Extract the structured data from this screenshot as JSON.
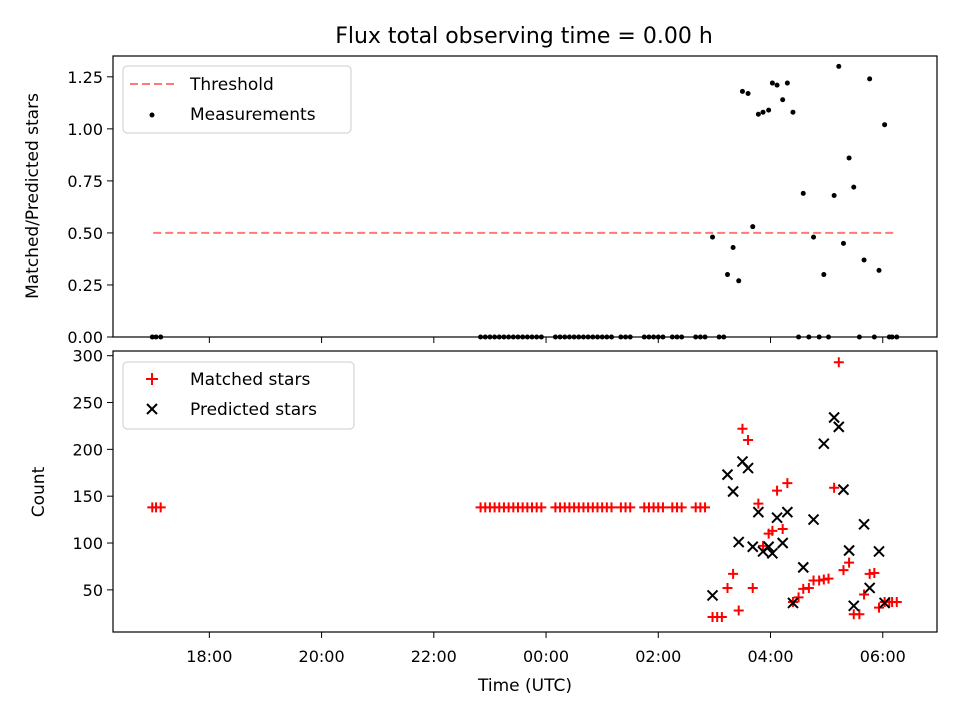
{
  "title": "Flux total observing time = 0.00 h",
  "colors": {
    "threshold": "#ff7777",
    "measurements": "#000000",
    "matched": "#ff0000",
    "predicted": "#000000"
  },
  "chart_data": [
    {
      "type": "scatter",
      "panel": "top",
      "title": "Flux total observing time = 0.00 h",
      "ylabel": "Matched/Predicted stars",
      "xlabel": "",
      "xlim": [
        "16:17",
        "06:58"
      ],
      "ylim": [
        0,
        1.35
      ],
      "x_ticks": [
        "18:00",
        "20:00",
        "22:00",
        "00:00",
        "02:00",
        "04:00",
        "06:00"
      ],
      "y_ticks": [
        "0.00",
        "0.25",
        "0.50",
        "0.75",
        "1.00",
        "1.25"
      ],
      "legend": {
        "placement": "upper left",
        "entries": [
          "Threshold",
          "Measurements"
        ]
      },
      "threshold": {
        "name": "Threshold",
        "value": 0.5,
        "x": [
          "17:00",
          "06:15"
        ]
      },
      "series": [
        {
          "name": "Measurements",
          "points": [
            [
              "16:59",
              0
            ],
            [
              "17:03",
              0
            ],
            [
              "17:08",
              0
            ],
            [
              "22:50",
              0
            ],
            [
              "22:55",
              0
            ],
            [
              "23:00",
              0
            ],
            [
              "23:05",
              0
            ],
            [
              "23:10",
              0
            ],
            [
              "23:15",
              0
            ],
            [
              "23:20",
              0
            ],
            [
              "23:25",
              0
            ],
            [
              "23:30",
              0
            ],
            [
              "23:35",
              0
            ],
            [
              "23:40",
              0
            ],
            [
              "23:45",
              0
            ],
            [
              "23:50",
              0
            ],
            [
              "23:55",
              0
            ],
            [
              "00:10",
              0
            ],
            [
              "00:15",
              0
            ],
            [
              "00:20",
              0
            ],
            [
              "00:25",
              0
            ],
            [
              "00:30",
              0
            ],
            [
              "00:35",
              0
            ],
            [
              "00:40",
              0
            ],
            [
              "00:45",
              0
            ],
            [
              "00:50",
              0
            ],
            [
              "00:55",
              0
            ],
            [
              "01:00",
              0
            ],
            [
              "01:05",
              0
            ],
            [
              "01:10",
              0
            ],
            [
              "01:20",
              0
            ],
            [
              "01:25",
              0
            ],
            [
              "01:30",
              0
            ],
            [
              "01:45",
              0
            ],
            [
              "01:50",
              0
            ],
            [
              "01:55",
              0
            ],
            [
              "02:00",
              0
            ],
            [
              "02:05",
              0
            ],
            [
              "02:15",
              0
            ],
            [
              "02:20",
              0
            ],
            [
              "02:25",
              0
            ],
            [
              "02:40",
              0
            ],
            [
              "02:45",
              0
            ],
            [
              "02:50",
              0
            ],
            [
              "03:05",
              0
            ],
            [
              "03:10",
              0
            ],
            [
              "02:58",
              0.48
            ],
            [
              "03:14",
              0.3
            ],
            [
              "03:20",
              0.43
            ],
            [
              "03:26",
              0.27
            ],
            [
              "03:30",
              1.18
            ],
            [
              "03:36",
              1.17
            ],
            [
              "03:41",
              0.53
            ],
            [
              "03:47",
              1.07
            ],
            [
              "03:52",
              1.08
            ],
            [
              "03:58",
              1.09
            ],
            [
              "04:02",
              1.22
            ],
            [
              "04:07",
              1.21
            ],
            [
              "04:13",
              1.14
            ],
            [
              "04:18",
              1.22
            ],
            [
              "04:24",
              1.08
            ],
            [
              "04:30",
              0
            ],
            [
              "04:35",
              0.69
            ],
            [
              "04:41",
              0
            ],
            [
              "04:46",
              0.48
            ],
            [
              "04:52",
              0
            ],
            [
              "04:57",
              0.3
            ],
            [
              "05:02",
              0
            ],
            [
              "05:08",
              0.68
            ],
            [
              "05:13",
              1.3
            ],
            [
              "05:18",
              0.45
            ],
            [
              "05:24",
              0.86
            ],
            [
              "05:29",
              0.72
            ],
            [
              "05:35",
              0
            ],
            [
              "05:40",
              0.37
            ],
            [
              "05:46",
              1.24
            ],
            [
              "05:51",
              0
            ],
            [
              "05:56",
              0.32
            ],
            [
              "06:02",
              1.02
            ],
            [
              "06:07",
              0
            ],
            [
              "06:10",
              0
            ],
            [
              "06:15",
              0
            ]
          ]
        }
      ]
    },
    {
      "type": "scatter",
      "panel": "bottom",
      "title": "",
      "xlabel": "Time (UTC)",
      "ylabel": "Count",
      "xlim": [
        "16:17",
        "06:58"
      ],
      "ylim": [
        5,
        305
      ],
      "x_ticks": [
        "18:00",
        "20:00",
        "22:00",
        "00:00",
        "02:00",
        "04:00",
        "06:00"
      ],
      "y_ticks": [
        "50",
        "100",
        "150",
        "200",
        "250",
        "300"
      ],
      "legend": {
        "placement": "upper left",
        "entries": [
          "Matched stars",
          "Predicted stars"
        ]
      },
      "series": [
        {
          "name": "Matched stars",
          "marker": "plus",
          "points": [
            [
              "16:59",
              138
            ],
            [
              "17:03",
              138
            ],
            [
              "17:08",
              138
            ],
            [
              "22:50",
              138
            ],
            [
              "22:55",
              138
            ],
            [
              "23:00",
              138
            ],
            [
              "23:05",
              138
            ],
            [
              "23:10",
              138
            ],
            [
              "23:15",
              138
            ],
            [
              "23:20",
              138
            ],
            [
              "23:25",
              138
            ],
            [
              "23:30",
              138
            ],
            [
              "23:35",
              138
            ],
            [
              "23:40",
              138
            ],
            [
              "23:45",
              138
            ],
            [
              "23:50",
              138
            ],
            [
              "23:55",
              138
            ],
            [
              "00:10",
              138
            ],
            [
              "00:15",
              138
            ],
            [
              "00:20",
              138
            ],
            [
              "00:25",
              138
            ],
            [
              "00:30",
              138
            ],
            [
              "00:35",
              138
            ],
            [
              "00:40",
              138
            ],
            [
              "00:45",
              138
            ],
            [
              "00:50",
              138
            ],
            [
              "00:55",
              138
            ],
            [
              "01:00",
              138
            ],
            [
              "01:05",
              138
            ],
            [
              "01:10",
              138
            ],
            [
              "01:20",
              138
            ],
            [
              "01:25",
              138
            ],
            [
              "01:30",
              138
            ],
            [
              "01:45",
              138
            ],
            [
              "01:50",
              138
            ],
            [
              "01:55",
              138
            ],
            [
              "02:00",
              138
            ],
            [
              "02:05",
              138
            ],
            [
              "02:15",
              138
            ],
            [
              "02:20",
              138
            ],
            [
              "02:25",
              138
            ],
            [
              "02:40",
              138
            ],
            [
              "02:45",
              138
            ],
            [
              "02:50",
              138
            ],
            [
              "02:58",
              21
            ],
            [
              "03:03",
              21
            ],
            [
              "03:08",
              21
            ],
            [
              "03:14",
              52
            ],
            [
              "03:20",
              67
            ],
            [
              "03:26",
              28
            ],
            [
              "03:30",
              222
            ],
            [
              "03:36",
              210
            ],
            [
              "03:41",
              52
            ],
            [
              "03:47",
              142
            ],
            [
              "03:52",
              97
            ],
            [
              "03:58",
              110
            ],
            [
              "04:02",
              113
            ],
            [
              "04:07",
              156
            ],
            [
              "04:13",
              115
            ],
            [
              "04:18",
              164
            ],
            [
              "04:24",
              37
            ],
            [
              "04:30",
              42
            ],
            [
              "04:35",
              51
            ],
            [
              "04:41",
              52
            ],
            [
              "04:46",
              60
            ],
            [
              "04:52",
              60
            ],
            [
              "04:57",
              61
            ],
            [
              "05:02",
              62
            ],
            [
              "05:08",
              159
            ],
            [
              "05:13",
              293
            ],
            [
              "05:18",
              71
            ],
            [
              "05:24",
              79
            ],
            [
              "05:29",
              24
            ],
            [
              "05:35",
              24
            ],
            [
              "05:40",
              45
            ],
            [
              "05:46",
              67
            ],
            [
              "05:51",
              68
            ],
            [
              "05:56",
              31
            ],
            [
              "06:02",
              37
            ],
            [
              "06:07",
              37
            ],
            [
              "06:10",
              37
            ],
            [
              "06:15",
              37
            ]
          ]
        },
        {
          "name": "Predicted stars",
          "marker": "x",
          "points": [
            [
              "02:58",
              44
            ],
            [
              "03:14",
              173
            ],
            [
              "03:20",
              155
            ],
            [
              "03:26",
              101
            ],
            [
              "03:30",
              187
            ],
            [
              "03:36",
              180
            ],
            [
              "03:41",
              96
            ],
            [
              "03:47",
              133
            ],
            [
              "03:52",
              91
            ],
            [
              "03:58",
              96
            ],
            [
              "04:02",
              89
            ],
            [
              "04:07",
              127
            ],
            [
              "04:13",
              100
            ],
            [
              "04:18",
              133
            ],
            [
              "04:24",
              36
            ],
            [
              "04:35",
              74
            ],
            [
              "04:46",
              125
            ],
            [
              "04:57",
              206
            ],
            [
              "05:08",
              234
            ],
            [
              "05:13",
              224
            ],
            [
              "05:18",
              157
            ],
            [
              "05:24",
              92
            ],
            [
              "05:29",
              33
            ],
            [
              "05:40",
              120
            ],
            [
              "05:46",
              52
            ],
            [
              "05:56",
              91
            ],
            [
              "06:02",
              36
            ]
          ]
        }
      ]
    }
  ]
}
